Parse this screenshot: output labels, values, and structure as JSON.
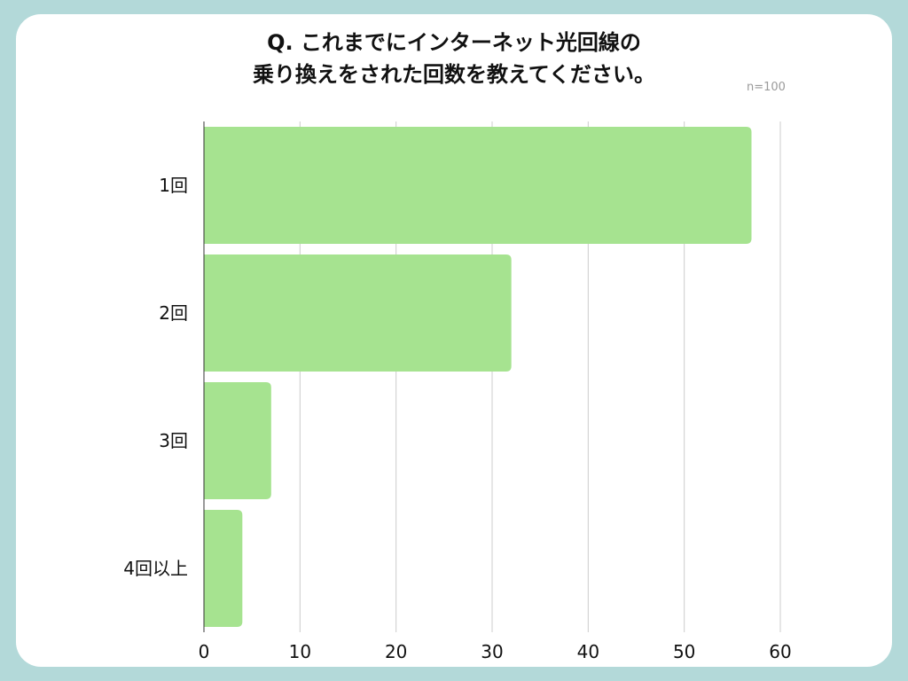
{
  "title_lines": [
    "Q. これまでにインターネット光回線の",
    "乗り換えをされた回数を教えてください。"
  ],
  "sample_size": "n=100",
  "colors": {
    "background": "#b3d9d9",
    "card": "#ffffff",
    "bar": "#a6e390",
    "grid": "#cccccc",
    "axis": "#333333",
    "text": "#111111"
  },
  "chart_data": {
    "type": "bar",
    "orientation": "horizontal",
    "categories": [
      "1回",
      "2回",
      "3回",
      "4回以上"
    ],
    "values": [
      57,
      32,
      7,
      4
    ],
    "xlim": [
      0,
      60
    ],
    "xticks": [
      0,
      10,
      20,
      30,
      40,
      50,
      60
    ],
    "grid": true,
    "title": "Q. これまでにインターネット光回線の乗り換えをされた回数を教えてください。",
    "xlabel": "",
    "ylabel": ""
  }
}
